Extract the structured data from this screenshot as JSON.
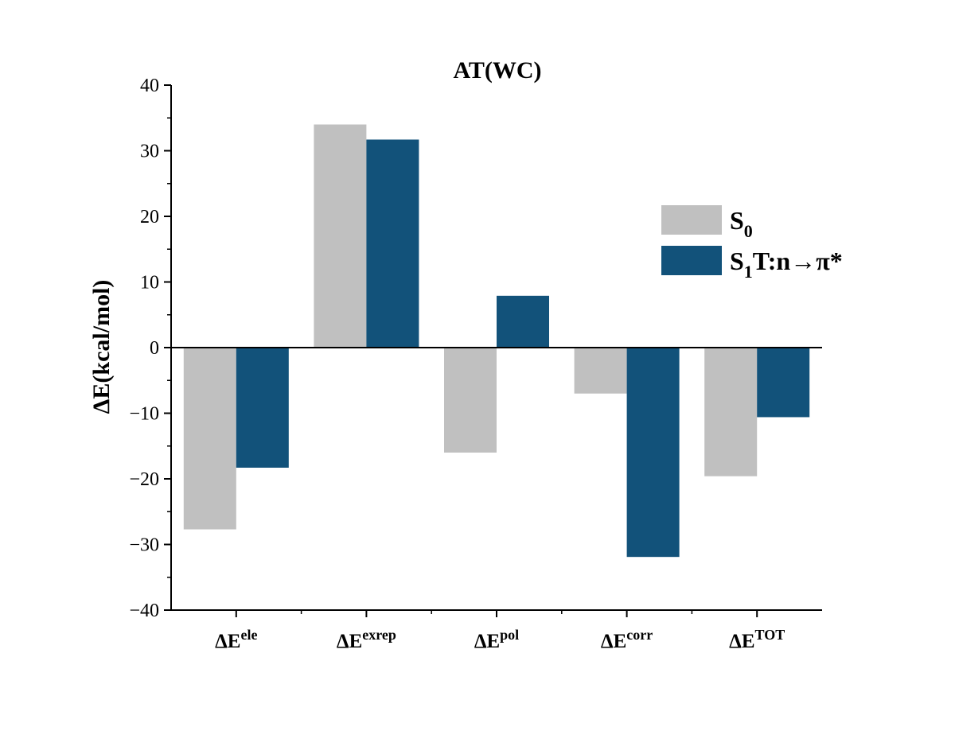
{
  "chart_data": {
    "type": "bar",
    "title": "AT(WC)",
    "ylabel": "ΔE(kcal/mol)",
    "xlabel": "",
    "ylim": [
      -40,
      40
    ],
    "yticks": [
      40,
      30,
      20,
      10,
      0,
      -10,
      -20,
      -30,
      -40
    ],
    "ytick_labels": [
      "40",
      "30",
      "20",
      "10",
      "0",
      "−10",
      "−20",
      "−30",
      "−40"
    ],
    "categories": [
      {
        "base": "ΔE",
        "sup": "ele"
      },
      {
        "base": "ΔE",
        "sup": "exrep"
      },
      {
        "base": "ΔE",
        "sup": "pol"
      },
      {
        "base": "ΔE",
        "sup": "corr"
      },
      {
        "base": "ΔE",
        "sup": "TOT"
      }
    ],
    "series": [
      {
        "name": "S0",
        "label_main": "S",
        "label_sub": "0",
        "label_rest": "",
        "color": "#c0c0c0",
        "values": [
          -27.7,
          34.0,
          -16.0,
          -7.0,
          -19.6
        ]
      },
      {
        "name": "S1T:n→π*",
        "label_main": "S",
        "label_sub": "1",
        "label_rest": "T:n→π*",
        "color": "#12527a",
        "values": [
          -18.3,
          31.7,
          7.9,
          -31.9,
          -10.6
        ]
      }
    ],
    "grid": false,
    "legend_position": "top-right"
  }
}
